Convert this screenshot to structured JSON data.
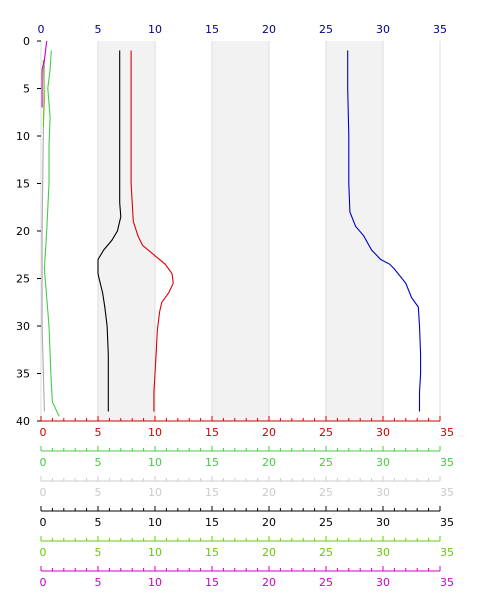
{
  "chart_data": {
    "type": "line",
    "orientation": "vertical-profile",
    "y_axis": {
      "ticks": [
        0,
        5,
        10,
        15,
        20,
        25,
        30,
        35,
        40
      ],
      "range": [
        0,
        40
      ],
      "inverted": true,
      "color": "#000000"
    },
    "top_axis": {
      "ticks": [
        0,
        5,
        10,
        15,
        20,
        25,
        30,
        35
      ],
      "range": [
        0,
        35
      ],
      "color": "#00008b"
    },
    "bottom_axes": [
      {
        "id": "red",
        "color": "#d00000",
        "ticks": [
          0,
          5,
          10,
          15,
          20,
          25,
          30,
          35
        ]
      },
      {
        "id": "green",
        "color": "#44cc44",
        "ticks": [
          0,
          5,
          10,
          15,
          20,
          25,
          30,
          35
        ]
      },
      {
        "id": "lightgray",
        "color": "#cccccc",
        "ticks": [
          0,
          5,
          10,
          15,
          20,
          25,
          30,
          35
        ]
      },
      {
        "id": "black",
        "color": "#000000",
        "ticks": [
          0,
          5,
          10,
          15,
          20,
          25,
          30,
          35
        ]
      },
      {
        "id": "lime",
        "color": "#66cc00",
        "ticks": [
          0,
          5,
          10,
          15,
          20,
          25,
          30,
          35
        ]
      },
      {
        "id": "magenta",
        "color": "#cc00cc",
        "ticks": [
          0,
          5,
          10,
          15,
          20,
          25,
          30,
          35
        ]
      }
    ],
    "x_range": [
      0,
      35
    ],
    "shaded_bands": [
      [
        5,
        10
      ],
      [
        15,
        20
      ],
      [
        25,
        30
      ]
    ],
    "series": [
      {
        "color": "#0000cc",
        "points": [
          [
            26.9,
            1
          ],
          [
            26.9,
            5
          ],
          [
            27,
            10
          ],
          [
            27,
            15
          ],
          [
            27.1,
            18
          ],
          [
            27.6,
            19.5
          ],
          [
            28.3,
            20.5
          ],
          [
            29,
            22
          ],
          [
            29.8,
            23
          ],
          [
            30.6,
            23.5
          ],
          [
            31,
            24
          ],
          [
            32,
            25.5
          ],
          [
            32.5,
            27
          ],
          [
            33.1,
            28
          ],
          [
            33.2,
            30
          ],
          [
            33.3,
            33
          ],
          [
            33.3,
            35
          ],
          [
            33.2,
            37
          ],
          [
            33.2,
            39
          ]
        ]
      },
      {
        "color": "#dd0000",
        "points": [
          [
            7.9,
            1
          ],
          [
            7.9,
            10
          ],
          [
            7.9,
            15
          ],
          [
            8,
            17
          ],
          [
            8.1,
            19
          ],
          [
            8.5,
            20.5
          ],
          [
            8.9,
            21.5
          ],
          [
            9.9,
            22.5
          ],
          [
            10.9,
            23.5
          ],
          [
            11.5,
            24.5
          ],
          [
            11.6,
            25.5
          ],
          [
            11.2,
            26.5
          ],
          [
            10.6,
            27.5
          ],
          [
            10.4,
            28.5
          ],
          [
            10.2,
            30.5
          ],
          [
            10.1,
            33
          ],
          [
            10,
            35
          ],
          [
            9.9,
            37
          ],
          [
            9.9,
            39
          ]
        ]
      },
      {
        "color": "#000000",
        "points": [
          [
            6.9,
            1
          ],
          [
            6.9,
            5
          ],
          [
            6.9,
            10
          ],
          [
            6.9,
            15
          ],
          [
            6.9,
            17
          ],
          [
            7,
            18.5
          ],
          [
            6.7,
            20
          ],
          [
            6.2,
            21
          ],
          [
            5.5,
            22
          ],
          [
            5,
            23
          ],
          [
            5,
            24.5
          ],
          [
            5.1,
            25
          ],
          [
            5.4,
            26.5
          ],
          [
            5.6,
            28
          ],
          [
            5.8,
            30
          ],
          [
            5.9,
            33
          ],
          [
            5.9,
            35
          ],
          [
            5.9,
            37
          ],
          [
            5.9,
            39
          ]
        ]
      },
      {
        "color": "#44cc44",
        "points": [
          [
            0.9,
            1
          ],
          [
            0.8,
            3
          ],
          [
            0.6,
            5
          ],
          [
            0.8,
            8
          ],
          [
            0.7,
            11
          ],
          [
            0.7,
            15
          ],
          [
            0.5,
            20
          ],
          [
            0.3,
            24
          ],
          [
            0.5,
            27
          ],
          [
            0.7,
            30
          ],
          [
            0.8,
            33
          ],
          [
            0.9,
            36
          ],
          [
            1,
            38
          ],
          [
            1.6,
            39.5
          ]
        ]
      },
      {
        "color": "#aaaaaa",
        "points": [
          [
            0.3,
            2
          ],
          [
            0.2,
            10
          ],
          [
            0.1,
            20
          ],
          [
            0.1,
            30
          ],
          [
            0.3,
            39
          ]
        ]
      },
      {
        "color": "#66cc00",
        "points": [
          [
            0.2,
            2
          ],
          [
            0.3,
            6
          ],
          [
            0.2,
            9
          ]
        ]
      },
      {
        "color": "#cc00cc",
        "points": [
          [
            0.5,
            0
          ],
          [
            0.4,
            1
          ],
          [
            0.3,
            2
          ],
          [
            0.1,
            3
          ],
          [
            0.1,
            7
          ]
        ]
      }
    ]
  }
}
